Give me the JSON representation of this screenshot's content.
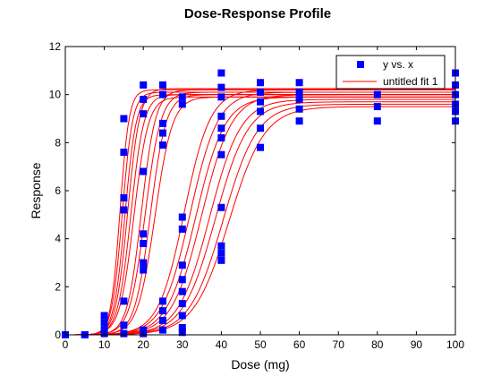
{
  "chart_data": {
    "type": "scatter",
    "title": "Dose-Response Profile",
    "xlabel": "Dose (mg)",
    "ylabel": "Response",
    "xlim": [
      0,
      100
    ],
    "ylim": [
      0,
      12
    ],
    "xticks": [
      0,
      10,
      20,
      30,
      40,
      50,
      60,
      70,
      80,
      90,
      100
    ],
    "yticks": [
      0,
      2,
      4,
      6,
      8,
      10,
      12
    ],
    "grid": false,
    "legend": {
      "placement": "top-right",
      "entries": [
        "y vs.  x",
        "untitled fit 1"
      ]
    },
    "colors": {
      "points": "#0000ff",
      "fit": "#ff0000",
      "axes": "#000000"
    },
    "series": [
      {
        "name": "y vs.  x",
        "kind": "points",
        "points": [
          [
            0,
            0
          ],
          [
            0,
            0
          ],
          [
            0,
            0
          ],
          [
            0,
            0
          ],
          [
            5,
            0
          ],
          [
            5,
            0
          ],
          [
            10,
            0.05
          ],
          [
            10,
            0.2
          ],
          [
            10,
            0.5
          ],
          [
            10,
            0.8
          ],
          [
            15,
            0.05
          ],
          [
            15,
            0.4
          ],
          [
            15,
            1.4
          ],
          [
            15,
            5.2
          ],
          [
            15,
            5.7
          ],
          [
            15,
            7.6
          ],
          [
            15,
            9.0
          ],
          [
            20,
            0.05
          ],
          [
            20,
            0.2
          ],
          [
            20,
            2.7
          ],
          [
            20,
            3.0
          ],
          [
            20,
            3.8
          ],
          [
            20,
            4.2
          ],
          [
            20,
            6.8
          ],
          [
            20,
            9.2
          ],
          [
            20,
            9.8
          ],
          [
            20,
            10.4
          ],
          [
            25,
            0.2
          ],
          [
            25,
            0.6
          ],
          [
            25,
            1.0
          ],
          [
            25,
            1.4
          ],
          [
            25,
            7.9
          ],
          [
            25,
            8.4
          ],
          [
            25,
            8.8
          ],
          [
            25,
            10.0
          ],
          [
            25,
            10.4
          ],
          [
            30,
            0.1
          ],
          [
            30,
            0.3
          ],
          [
            30,
            0.8
          ],
          [
            30,
            1.3
          ],
          [
            30,
            1.8
          ],
          [
            30,
            2.3
          ],
          [
            30,
            2.9
          ],
          [
            30,
            4.4
          ],
          [
            30,
            4.9
          ],
          [
            30,
            9.6
          ],
          [
            30,
            9.9
          ],
          [
            40,
            3.1
          ],
          [
            40,
            3.4
          ],
          [
            40,
            3.7
          ],
          [
            40,
            5.3
          ],
          [
            40,
            7.5
          ],
          [
            40,
            8.2
          ],
          [
            40,
            8.6
          ],
          [
            40,
            9.1
          ],
          [
            40,
            9.9
          ],
          [
            40,
            10.3
          ],
          [
            40,
            10.9
          ],
          [
            50,
            7.8
          ],
          [
            50,
            8.6
          ],
          [
            50,
            9.3
          ],
          [
            50,
            9.7
          ],
          [
            50,
            10.1
          ],
          [
            50,
            10.5
          ],
          [
            60,
            8.9
          ],
          [
            60,
            9.4
          ],
          [
            60,
            9.8
          ],
          [
            60,
            10.1
          ],
          [
            60,
            10.5
          ],
          [
            80,
            8.9
          ],
          [
            80,
            9.5
          ],
          [
            80,
            10.0
          ],
          [
            100,
            8.9
          ],
          [
            100,
            9.3
          ],
          [
            100,
            9.6
          ],
          [
            100,
            10.0
          ],
          [
            100,
            10.4
          ],
          [
            100,
            10.9
          ]
        ]
      },
      {
        "name": "untitled fit 1",
        "kind": "logistic-curves",
        "curves": [
          {
            "top": 10.2,
            "ec50": 14.0,
            "slope": 0.85
          },
          {
            "top": 10.1,
            "ec50": 14.6,
            "slope": 0.75
          },
          {
            "top": 10.0,
            "ec50": 15.3,
            "slope": 0.7
          },
          {
            "top": 10.25,
            "ec50": 16.0,
            "slope": 0.65
          },
          {
            "top": 10.0,
            "ec50": 16.8,
            "slope": 0.6
          },
          {
            "top": 9.9,
            "ec50": 17.6,
            "slope": 0.55
          },
          {
            "top": 10.2,
            "ec50": 19.5,
            "slope": 0.55
          },
          {
            "top": 10.1,
            "ec50": 20.5,
            "slope": 0.5
          },
          {
            "top": 10.0,
            "ec50": 21.8,
            "slope": 0.5
          },
          {
            "top": 9.9,
            "ec50": 23.0,
            "slope": 0.45
          },
          {
            "top": 10.2,
            "ec50": 30.5,
            "slope": 0.3
          },
          {
            "top": 10.1,
            "ec50": 32.0,
            "slope": 0.28
          },
          {
            "top": 9.9,
            "ec50": 33.5,
            "slope": 0.27
          },
          {
            "top": 10.0,
            "ec50": 35.0,
            "slope": 0.26
          },
          {
            "top": 9.8,
            "ec50": 37.0,
            "slope": 0.25
          },
          {
            "top": 9.7,
            "ec50": 38.5,
            "slope": 0.24
          },
          {
            "top": 9.6,
            "ec50": 40.5,
            "slope": 0.23
          },
          {
            "top": 9.5,
            "ec50": 42.0,
            "slope": 0.22
          }
        ]
      }
    ]
  }
}
